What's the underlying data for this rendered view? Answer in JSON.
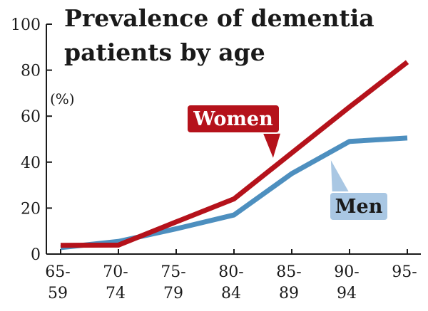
{
  "chart_data": {
    "type": "line",
    "title_lines": [
      "Prevalence of dementia",
      "patients by age"
    ],
    "ylabel": "(%)",
    "ylim": [
      0,
      100
    ],
    "yticks": [
      "0",
      "20",
      "40",
      "60",
      "80",
      "100"
    ],
    "categories": [
      [
        "65-",
        "59"
      ],
      [
        "70-",
        "74"
      ],
      [
        "75-",
        "79"
      ],
      [
        "80-",
        "84"
      ],
      [
        "85-",
        "89"
      ],
      [
        "90-",
        "94"
      ],
      [
        "95-",
        ""
      ]
    ],
    "series": [
      {
        "name": "Women",
        "color": "#b5121b",
        "label_fill": "#b5121b",
        "label_text_color": "#ffffff",
        "values": [
          3.8,
          3.9,
          14,
          24,
          44,
          64,
          83.5
        ]
      },
      {
        "name": "Men",
        "color": "#4d8fbf",
        "label_fill": "#a9c7e3",
        "label_text_color": "#1a1a1a",
        "values": [
          2.8,
          5.5,
          11,
          17,
          35,
          49,
          50.5
        ]
      }
    ],
    "colors": {
      "axis": "#1a1a1a",
      "text": "#1a1a1a"
    }
  }
}
